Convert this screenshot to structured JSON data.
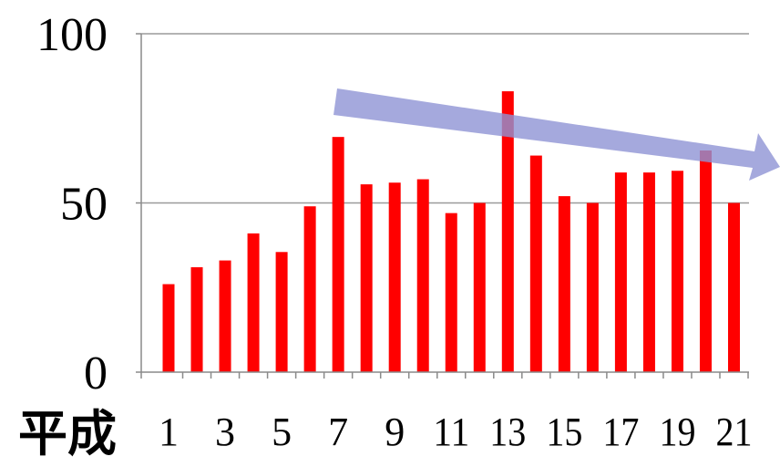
{
  "chart_data": {
    "type": "bar",
    "xlabel": "平成",
    "categories": [
      "1",
      "2",
      "3",
      "4",
      "5",
      "6",
      "7",
      "8",
      "9",
      "10",
      "11",
      "12",
      "13",
      "14",
      "15",
      "16",
      "17",
      "18",
      "19",
      "20",
      "21"
    ],
    "x_tick_labels": [
      "1",
      "3",
      "5",
      "7",
      "9",
      "11",
      "13",
      "15",
      "17",
      "19",
      "21"
    ],
    "values": [
      26,
      31,
      33,
      41,
      35.5,
      49,
      69.5,
      55.5,
      56,
      57,
      47,
      50,
      83,
      64,
      52,
      50,
      59,
      59,
      59.5,
      65.5,
      50
    ],
    "ylim": [
      0,
      100
    ],
    "y_ticks": [
      0,
      50,
      100
    ],
    "grid": true,
    "bar_color": "#ff0000",
    "annotation": {
      "type": "arrow",
      "direction": "down-right",
      "color": "#8f94d4"
    }
  }
}
